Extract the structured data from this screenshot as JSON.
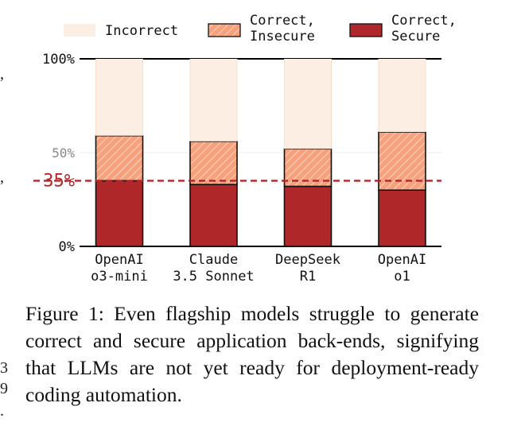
{
  "chart_data": {
    "type": "bar",
    "stacked": true,
    "categories": [
      [
        "OpenAI",
        "o3-mini"
      ],
      [
        "Claude",
        "3.5 Sonnet"
      ],
      [
        "DeepSeek",
        "R1"
      ],
      [
        "OpenAI",
        "o1"
      ]
    ],
    "series": [
      {
        "name": "Correct, Secure",
        "legend_lines": [
          "Correct,",
          "Secure"
        ],
        "values": [
          35,
          33,
          32,
          30
        ],
        "color": "#b0272a"
      },
      {
        "name": "Correct, Insecure",
        "legend_lines": [
          "Correct,",
          "Insecure"
        ],
        "values": [
          24,
          23,
          20,
          31
        ],
        "color": "#f6a07c"
      },
      {
        "name": "Incorrect",
        "legend_lines": [
          "Incorrect"
        ],
        "values": [
          41,
          44,
          48,
          39
        ],
        "color": "#fde9dc"
      }
    ],
    "ylim": [
      0,
      100
    ],
    "yticks": [
      {
        "value": 0,
        "label": "0%"
      },
      {
        "value": 50,
        "label": "50%"
      },
      {
        "value": 100,
        "label": "100%"
      }
    ],
    "reference_line": {
      "value": 35,
      "label": "35%",
      "color": "#b0272a",
      "style": "dashed"
    },
    "legend_position": "top",
    "grid": false,
    "xlabel": "",
    "ylabel": "",
    "title": ""
  },
  "caption": "Figure 1:  Even flagship models struggle to generate correct and secure application back-ends, signifying that LLMs are not yet ready for deployment-ready coding automation.",
  "left_margin_glyphs": [
    ",",
    ",",
    "3",
    "9",
    "."
  ]
}
